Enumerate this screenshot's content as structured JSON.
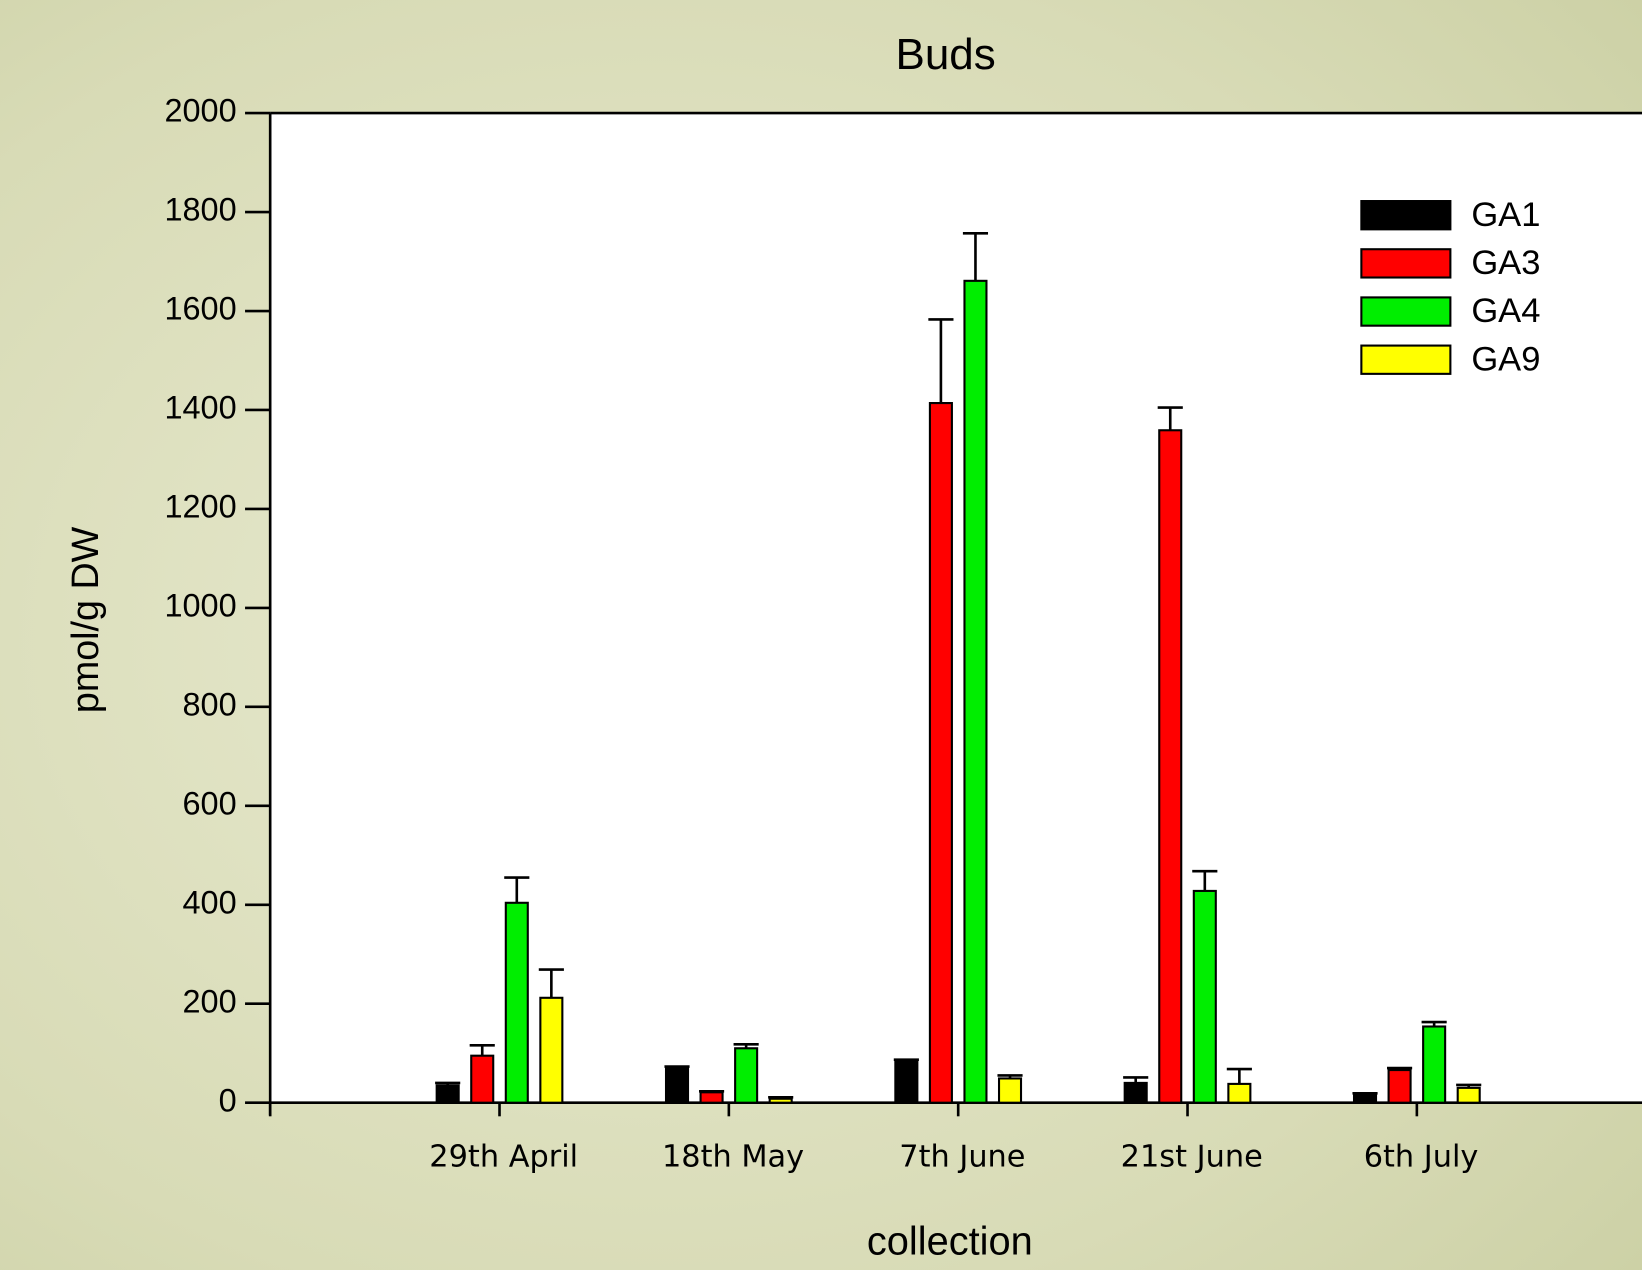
{
  "chart_data": {
    "type": "bar",
    "title": "Buds",
    "x_label": "collection",
    "y_label": "pmol/g DW",
    "categories": [
      "29th April",
      "18th May",
      "7th June",
      "21st June",
      "6th July"
    ],
    "series": [
      {
        "name": "GA1",
        "color": "#000000",
        "values": [
          35,
          70,
          85,
          40,
          17
        ],
        "errors": [
          5,
          3,
          2,
          11,
          2
        ]
      },
      {
        "name": "GA3",
        "color": "#ff0000",
        "values": [
          95,
          21,
          1414,
          1359,
          66
        ],
        "errors": [
          21,
          2,
          169,
          46,
          4
        ]
      },
      {
        "name": "GA4",
        "color": "#00ee00",
        "values": [
          404,
          110,
          1661,
          428,
          154
        ],
        "errors": [
          51,
          8,
          96,
          40,
          9
        ]
      },
      {
        "name": "GA9",
        "color": "#ffff00",
        "values": [
          212,
          8,
          49,
          38,
          30
        ],
        "errors": [
          57,
          3,
          6,
          30,
          6
        ]
      }
    ],
    "ylim": [
      0,
      2000
    ],
    "yticks": [
      0,
      200,
      400,
      600,
      800,
      1000,
      1200,
      1400,
      1600,
      1800,
      2000
    ],
    "legend": "upper right"
  }
}
